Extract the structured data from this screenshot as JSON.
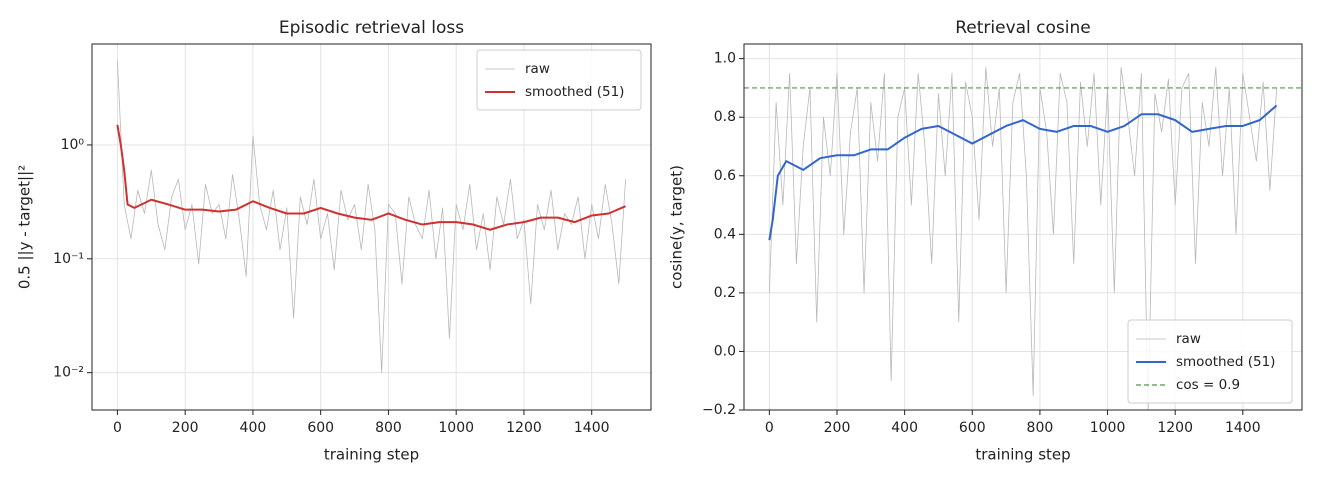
{
  "chart_data": [
    {
      "type": "line",
      "title": "Episodic retrieval loss",
      "xlabel": "training step",
      "ylabel": "0.5 ||y - target||²",
      "yscale": "log",
      "grid": true,
      "legend": "upper right",
      "xlim": [
        -75,
        1575
      ],
      "xticks": [
        0,
        200,
        400,
        600,
        800,
        1000,
        1200,
        1400
      ],
      "ylim": [
        0.0047,
        7.7
      ],
      "yticks": [
        {
          "value": 0.01,
          "label": "10⁻²"
        },
        {
          "value": 0.1,
          "label": "10⁻¹"
        },
        {
          "value": 1,
          "label": "10⁰"
        }
      ],
      "series": [
        {
          "name": "raw",
          "color": "#b8b8b8",
          "x": [
            0,
            20,
            40,
            60,
            80,
            100,
            120,
            140,
            160,
            180,
            200,
            220,
            240,
            260,
            280,
            300,
            320,
            340,
            360,
            380,
            400,
            420,
            440,
            460,
            480,
            500,
            520,
            540,
            560,
            580,
            600,
            620,
            640,
            660,
            680,
            700,
            720,
            740,
            760,
            780,
            800,
            820,
            840,
            860,
            880,
            900,
            920,
            940,
            960,
            980,
            1000,
            1020,
            1040,
            1060,
            1080,
            1100,
            1120,
            1140,
            1160,
            1180,
            1200,
            1220,
            1240,
            1260,
            1280,
            1300,
            1320,
            1340,
            1360,
            1380,
            1400,
            1420,
            1440,
            1460,
            1480,
            1500
          ],
          "values": [
            5.5,
            0.3,
            0.15,
            0.4,
            0.25,
            0.6,
            0.2,
            0.12,
            0.35,
            0.5,
            0.18,
            0.3,
            0.09,
            0.45,
            0.25,
            0.3,
            0.15,
            0.55,
            0.22,
            0.07,
            1.2,
            0.3,
            0.18,
            0.4,
            0.12,
            0.28,
            0.03,
            0.35,
            0.2,
            0.5,
            0.15,
            0.25,
            0.08,
            0.4,
            0.22,
            0.3,
            0.12,
            0.45,
            0.18,
            0.01,
            0.3,
            0.25,
            0.06,
            0.35,
            0.2,
            0.15,
            0.4,
            0.1,
            0.28,
            0.02,
            0.3,
            0.18,
            0.45,
            0.12,
            0.25,
            0.08,
            0.35,
            0.2,
            0.5,
            0.15,
            0.22,
            0.04,
            0.3,
            0.18,
            0.4,
            0.12,
            0.25,
            0.2,
            0.35,
            0.1,
            0.3,
            0.15,
            0.45,
            0.2,
            0.06,
            0.5
          ]
        },
        {
          "name": "smoothed (51)",
          "color": "#d03030",
          "x": [
            0,
            10,
            20,
            30,
            50,
            100,
            150,
            200,
            250,
            300,
            350,
            400,
            450,
            500,
            550,
            600,
            650,
            700,
            750,
            800,
            850,
            900,
            950,
            1000,
            1050,
            1100,
            1150,
            1200,
            1250,
            1300,
            1350,
            1400,
            1450,
            1500
          ],
          "values": [
            1.5,
            1.0,
            0.6,
            0.3,
            0.28,
            0.33,
            0.3,
            0.27,
            0.27,
            0.26,
            0.27,
            0.32,
            0.28,
            0.25,
            0.25,
            0.28,
            0.25,
            0.23,
            0.22,
            0.25,
            0.22,
            0.2,
            0.21,
            0.21,
            0.2,
            0.18,
            0.2,
            0.21,
            0.23,
            0.23,
            0.21,
            0.24,
            0.25,
            0.29
          ]
        }
      ]
    },
    {
      "type": "line",
      "title": "Retrieval cosine",
      "xlabel": "training step",
      "ylabel": "cosine(y, target)",
      "yscale": "linear",
      "grid": true,
      "legend": "lower right",
      "xlim": [
        -75,
        1575
      ],
      "xticks": [
        0,
        200,
        400,
        600,
        800,
        1000,
        1200,
        1400
      ],
      "ylim": [
        -0.2,
        1.05
      ],
      "yticks": [
        {
          "value": -0.2,
          "label": "−0.2"
        },
        {
          "value": 0,
          "label": "0.0"
        },
        0.2,
        0.4,
        0.6,
        0.8,
        {
          "value": 1,
          "label": "1.0"
        }
      ],
      "series": [
        {
          "name": "raw",
          "color": "#b8b8b8",
          "x": [
            0,
            20,
            40,
            60,
            80,
            100,
            120,
            140,
            160,
            180,
            200,
            220,
            240,
            260,
            280,
            300,
            320,
            340,
            360,
            380,
            400,
            420,
            440,
            460,
            480,
            500,
            520,
            540,
            560,
            580,
            600,
            620,
            640,
            660,
            680,
            700,
            720,
            740,
            760,
            780,
            800,
            820,
            840,
            860,
            880,
            900,
            920,
            940,
            960,
            980,
            1000,
            1020,
            1040,
            1060,
            1080,
            1100,
            1120,
            1140,
            1160,
            1180,
            1200,
            1220,
            1240,
            1260,
            1280,
            1300,
            1320,
            1340,
            1360,
            1380,
            1400,
            1420,
            1440,
            1460,
            1480,
            1500
          ],
          "values": [
            0.2,
            0.85,
            0.5,
            0.95,
            0.3,
            0.7,
            0.9,
            0.1,
            0.8,
            0.6,
            0.95,
            0.4,
            0.75,
            0.9,
            0.2,
            0.85,
            0.65,
            0.95,
            -0.1,
            0.8,
            0.9,
            0.5,
            0.95,
            0.7,
            0.3,
            0.88,
            0.6,
            0.95,
            0.1,
            0.92,
            0.8,
            0.45,
            0.97,
            0.7,
            0.9,
            0.2,
            0.85,
            0.95,
            0.6,
            -0.15,
            0.9,
            0.75,
            0.4,
            0.95,
            0.85,
            0.3,
            0.92,
            0.7,
            0.95,
            0.5,
            0.9,
            0.2,
            0.97,
            0.8,
            0.6,
            0.95,
            -0.2,
            0.88,
            0.75,
            0.93,
            0.5,
            0.9,
            0.95,
            0.3,
            0.85,
            0.7,
            0.97,
            0.6,
            0.9,
            0.4,
            0.95,
            0.8,
            0.65,
            0.92,
            0.55,
            0.9
          ]
        },
        {
          "name": "smoothed (51)",
          "color": "#3366cc",
          "x": [
            0,
            10,
            25,
            50,
            100,
            150,
            200,
            250,
            300,
            350,
            400,
            450,
            500,
            550,
            600,
            650,
            700,
            750,
            800,
            850,
            900,
            950,
            1000,
            1050,
            1100,
            1150,
            1200,
            1250,
            1300,
            1350,
            1400,
            1450,
            1500
          ],
          "values": [
            0.38,
            0.45,
            0.6,
            0.65,
            0.62,
            0.66,
            0.67,
            0.67,
            0.69,
            0.69,
            0.73,
            0.76,
            0.77,
            0.74,
            0.71,
            0.74,
            0.77,
            0.79,
            0.76,
            0.75,
            0.77,
            0.77,
            0.75,
            0.77,
            0.81,
            0.81,
            0.79,
            0.75,
            0.76,
            0.77,
            0.77,
            0.79,
            0.84
          ]
        }
      ],
      "hline": {
        "name": "cos = 0.9",
        "value": 0.9,
        "color": "#4c9a45"
      }
    }
  ]
}
